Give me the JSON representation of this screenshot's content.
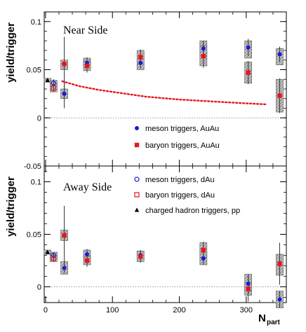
{
  "chart_data": [
    {
      "type": "scatter",
      "panel_label": "Near Side",
      "ylabel": "yield/trigger",
      "xlim": [
        -2,
        360
      ],
      "ylim": [
        -0.05,
        0.11
      ],
      "x_ticks": [
        0,
        100,
        200,
        300
      ],
      "y_ticks": [
        -0.05,
        0,
        0.05,
        0.1
      ],
      "y_tick_labels": [
        "-0.05",
        "0",
        "0.05",
        "0.1"
      ],
      "zero_line": true,
      "legend": [
        {
          "label": "meson triggers, AuAu",
          "marker": "filled-circle",
          "color": "#1a1adc"
        },
        {
          "label": "baryon triggers, AuAu",
          "marker": "filled-square",
          "color": "#e8141e"
        }
      ],
      "series": [
        {
          "name": "meson triggers, AuAu",
          "marker": "filled-circle",
          "color": "#1a1adc",
          "points": [
            {
              "x": 28,
              "y": 0.025,
              "box": [
                0.02,
                0.03
              ],
              "err": 0.015
            },
            {
              "x": 62,
              "y": 0.057,
              "box": [
                0.052,
                0.062
              ],
              "err": 0.006
            },
            {
              "x": 142,
              "y": 0.057,
              "box": [
                0.05,
                0.063
              ],
              "err": 0.006
            },
            {
              "x": 236,
              "y": 0.072,
              "box": [
                0.062,
                0.08
              ],
              "err": 0.008
            },
            {
              "x": 303,
              "y": 0.073,
              "box": [
                0.062,
                0.08
              ],
              "err": 0.009
            },
            {
              "x": 350,
              "y": 0.066,
              "box": [
                0.055,
                0.072
              ],
              "err": 0.008
            }
          ]
        },
        {
          "name": "baryon triggers, AuAu",
          "marker": "filled-square",
          "color": "#e8141e",
          "points": [
            {
              "x": 28,
              "y": 0.056,
              "box": [
                0.05,
                0.06
              ],
              "err": 0.028
            },
            {
              "x": 62,
              "y": 0.054,
              "box": [
                0.049,
                0.059
              ],
              "err": 0.007
            },
            {
              "x": 142,
              "y": 0.063,
              "box": [
                0.056,
                0.07
              ],
              "err": 0.008
            },
            {
              "x": 236,
              "y": 0.064,
              "box": [
                0.054,
                0.075
              ],
              "err": 0.012
            },
            {
              "x": 303,
              "y": 0.047,
              "box": [
                0.036,
                0.058
              ],
              "err": 0.012
            },
            {
              "x": 350,
              "y": 0.023,
              "box": [
                0.006,
                0.04
              ],
              "err": 0.018
            }
          ]
        },
        {
          "name": "meson triggers, dAu",
          "marker": "open-circle",
          "color": "#1a1adc",
          "points": [
            {
              "x": 12,
              "y": 0.036,
              "box": [
                0.033,
                0.039
              ],
              "err": 0.004
            }
          ]
        },
        {
          "name": "baryon triggers, dAu",
          "marker": "open-square",
          "color": "#e8141e",
          "points": [
            {
              "x": 12,
              "y": 0.031,
              "box": [
                0.027,
                0.035
              ],
              "err": 0.004
            }
          ]
        },
        {
          "name": "charged hadron triggers, pp",
          "marker": "filled-triangle",
          "color": "#000000",
          "points": [
            {
              "x": 3,
              "y": 0.039,
              "box": [
                0.037,
                0.041
              ],
              "err": 0.002
            }
          ]
        },
        {
          "type": "line",
          "style": "dotted",
          "color": "#e8141e",
          "points": [
            {
              "x": 25,
              "y": 0.038
            },
            {
              "x": 50,
              "y": 0.033
            },
            {
              "x": 80,
              "y": 0.029
            },
            {
              "x": 110,
              "y": 0.026
            },
            {
              "x": 150,
              "y": 0.022
            },
            {
              "x": 200,
              "y": 0.019
            },
            {
              "x": 250,
              "y": 0.017
            },
            {
              "x": 300,
              "y": 0.015
            },
            {
              "x": 330,
              "y": 0.014
            }
          ]
        }
      ]
    },
    {
      "type": "scatter",
      "panel_label": "Away Side",
      "ylabel": "yield/trigger",
      "xlabel": "N",
      "xlabel_subscript": "part",
      "xlim": [
        -2,
        360
      ],
      "ylim": [
        -0.015,
        0.115
      ],
      "x_ticks": [
        0,
        100,
        200,
        300
      ],
      "x_tick_labels": [
        "0",
        "100",
        "200",
        "300"
      ],
      "y_ticks": [
        0,
        0.05,
        0.1
      ],
      "y_tick_labels": [
        "0",
        "0.05",
        "0.1"
      ],
      "zero_line": true,
      "legend": [
        {
          "label": "meson triggers, dAu",
          "marker": "open-circle",
          "color": "#1a1adc"
        },
        {
          "label": "baryon triggers, dAu",
          "marker": "open-square",
          "color": "#e8141e"
        },
        {
          "label": "charged hadron triggers, pp",
          "marker": "filled-triangle",
          "color": "#000000"
        }
      ],
      "series": [
        {
          "name": "meson triggers, AuAu",
          "marker": "filled-circle",
          "color": "#1a1adc",
          "points": [
            {
              "x": 28,
              "y": 0.018,
              "box": [
                0.012,
                0.024
              ],
              "err": 0.005
            },
            {
              "x": 62,
              "y": 0.031,
              "box": [
                0.026,
                0.035
              ],
              "err": 0.005
            },
            {
              "x": 142,
              "y": 0.03,
              "box": [
                0.026,
                0.034
              ],
              "err": 0.004
            },
            {
              "x": 236,
              "y": 0.027,
              "box": [
                0.021,
                0.033
              ],
              "err": 0.006
            },
            {
              "x": 303,
              "y": 0.003,
              "box": [
                -0.006,
                0.012
              ],
              "err": 0.009
            },
            {
              "x": 350,
              "y": -0.012,
              "box": [
                -0.02,
                -0.004
              ],
              "err": 0.008
            }
          ]
        },
        {
          "name": "baryon triggers, AuAu",
          "marker": "filled-square",
          "color": "#e8141e",
          "points": [
            {
              "x": 28,
              "y": 0.049,
              "box": [
                0.044,
                0.054
              ],
              "err": 0.028
            },
            {
              "x": 62,
              "y": 0.025,
              "box": [
                0.021,
                0.029
              ],
              "err": 0.006
            },
            {
              "x": 142,
              "y": 0.029,
              "box": [
                0.024,
                0.034
              ],
              "err": 0.006
            },
            {
              "x": 236,
              "y": 0.035,
              "box": [
                0.028,
                0.042
              ],
              "err": 0.008
            },
            {
              "x": 303,
              "y": -0.002,
              "box": [
                -0.008,
                0.004
              ],
              "err": 0.012
            },
            {
              "x": 350,
              "y": 0.022,
              "box": [
                0.011,
                0.031
              ],
              "err": 0.02
            }
          ]
        },
        {
          "name": "meson triggers, dAu",
          "marker": "open-circle",
          "color": "#1a1adc",
          "points": [
            {
              "x": 12,
              "y": 0.03,
              "box": [
                0.027,
                0.033
              ],
              "err": 0.003
            }
          ]
        },
        {
          "name": "baryon triggers, dAu",
          "marker": "open-square",
          "color": "#e8141e",
          "points": [
            {
              "x": 12,
              "y": 0.027,
              "box": [
                0.024,
                0.03
              ],
              "err": 0.003
            }
          ]
        },
        {
          "name": "charged hadron triggers, pp",
          "marker": "filled-triangle",
          "color": "#000000",
          "points": [
            {
              "x": 3,
              "y": 0.033,
              "box": [
                0.031,
                0.035
              ],
              "err": 0.002
            }
          ]
        }
      ]
    }
  ]
}
